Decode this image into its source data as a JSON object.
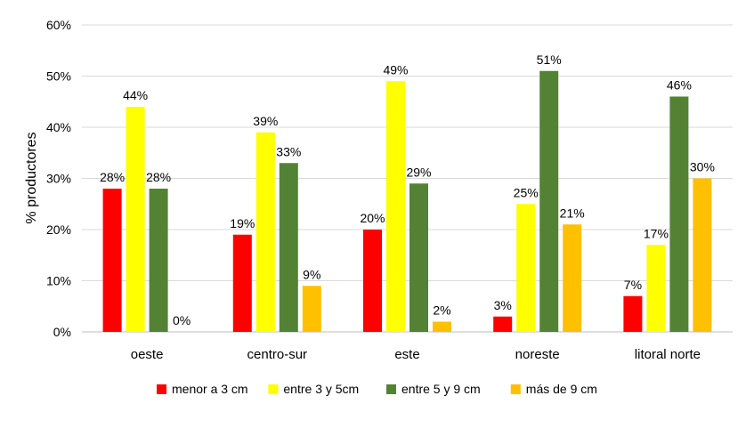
{
  "chart_data": {
    "type": "bar",
    "ylabel": "% productores",
    "xlabel": "",
    "ylim": [
      0,
      60
    ],
    "yticks": [
      0,
      10,
      20,
      30,
      40,
      50,
      60
    ],
    "ytick_labels": [
      "0%",
      "10%",
      "20%",
      "30%",
      "40%",
      "50%",
      "60%"
    ],
    "grid": true,
    "legend_position": "bottom",
    "categories": [
      "oeste",
      "centro-sur",
      "este",
      "noreste",
      "litoral norte"
    ],
    "series": [
      {
        "name": "menor a 3 cm",
        "color": "#ff0000",
        "values": [
          28,
          19,
          20,
          3,
          7
        ],
        "labels": [
          "28%",
          "19%",
          "20%",
          "3%",
          "7%"
        ]
      },
      {
        "name": "entre 3 y 5cm",
        "color": "#ffff00",
        "values": [
          44,
          39,
          49,
          25,
          17
        ],
        "labels": [
          "44%",
          "39%",
          "49%",
          "25%",
          "17%"
        ]
      },
      {
        "name": "entre 5 y 9 cm",
        "color": "#548235",
        "values": [
          28,
          33,
          29,
          51,
          46
        ],
        "labels": [
          "28%",
          "33%",
          "29%",
          "51%",
          "46%"
        ]
      },
      {
        "name": "más de 9 cm",
        "color": "#ffc000",
        "values": [
          0,
          9,
          2,
          21,
          30
        ],
        "labels": [
          "0%",
          "9%",
          "2%",
          "21%",
          "30%"
        ]
      }
    ]
  }
}
